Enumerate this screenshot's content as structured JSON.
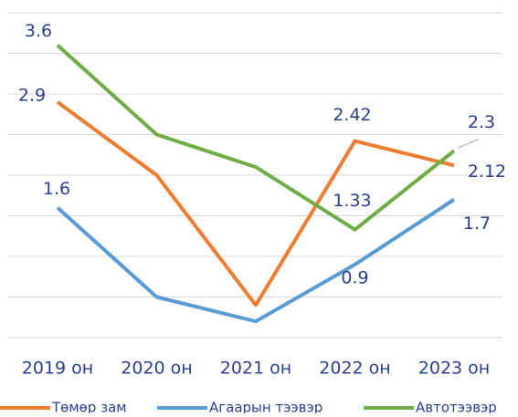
{
  "chart_data": {
    "type": "line",
    "categories": [
      "2019 он",
      "2020 он",
      "2021 он",
      "2022 он",
      "2023 он"
    ],
    "series": [
      {
        "name": "Төмөр зам",
        "color": "#ed7d31",
        "values": [
          2.9,
          2.0,
          0.4,
          2.42,
          2.12
        ],
        "value_labels": [
          "2.9",
          null,
          null,
          "2.42",
          "2.12"
        ]
      },
      {
        "name": "Агаарын тээвэр",
        "color": "#5b9bd5",
        "values": [
          1.6,
          0.5,
          0.2,
          0.9,
          1.7
        ],
        "value_labels": [
          "1.6",
          null,
          null,
          "0.9",
          "1.7"
        ]
      },
      {
        "name": "Автотээвэр",
        "color": "#70ad47",
        "values": [
          3.6,
          2.5,
          2.1,
          1.33,
          2.3
        ],
        "value_labels": [
          "3.6",
          null,
          null,
          "1.33",
          "2.3"
        ]
      }
    ],
    "ylim": [
      0,
      4
    ],
    "yticks": [
      0,
      0.5,
      1,
      1.5,
      2,
      2.5,
      3,
      3.5,
      4
    ],
    "grid": true,
    "legend": "bottom"
  }
}
